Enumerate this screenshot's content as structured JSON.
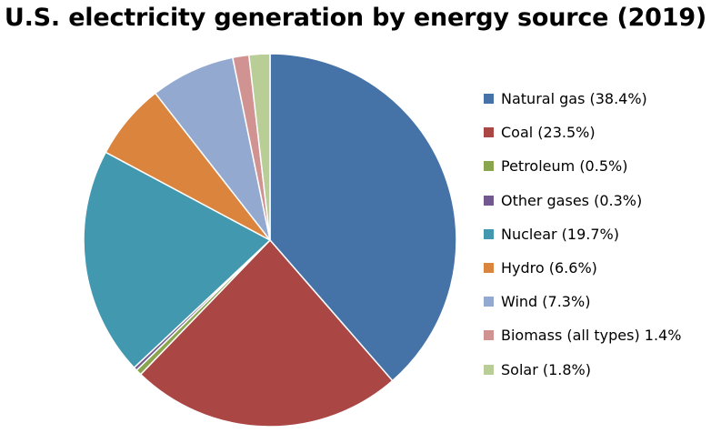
{
  "chart_data": {
    "type": "pie",
    "title": "U.S. electricity generation by energy source (2019)",
    "slices": [
      {
        "label": "Natural gas (38.4%)",
        "value": 38.4,
        "color": "#4572A7"
      },
      {
        "label": "Coal (23.5%)",
        "value": 23.5,
        "color": "#AA4643"
      },
      {
        "label": "Petroleum (0.5%)",
        "value": 0.5,
        "color": "#89A54E"
      },
      {
        "label": "Other gases (0.3%)",
        "value": 0.3,
        "color": "#71588F"
      },
      {
        "label": "Nuclear (19.7%)",
        "value": 19.7,
        "color": "#4198AF"
      },
      {
        "label": "Hydro (6.6%)",
        "value": 6.6,
        "color": "#DB843D"
      },
      {
        "label": "Wind (7.3%)",
        "value": 7.3,
        "color": "#93A9CF"
      },
      {
        "label": "Biomass (all types) 1.4%",
        "value": 1.4,
        "color": "#D19392"
      },
      {
        "label": "Solar (1.8%)",
        "value": 1.8,
        "color": "#B9CD96"
      }
    ],
    "legend": "right"
  }
}
